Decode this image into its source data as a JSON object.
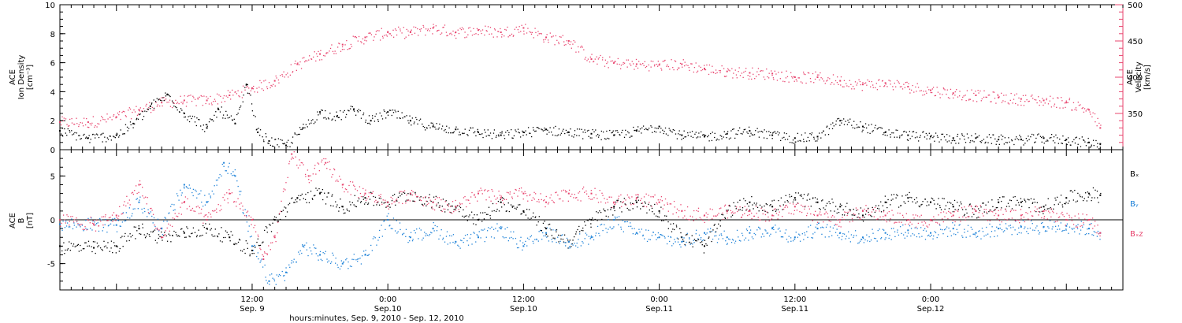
{
  "colors": {
    "axis": "#000000",
    "density": "#000000",
    "velocity": "#e8446e",
    "bx": "#000000",
    "by": "#1e82d8",
    "bz": "#e8446e"
  },
  "chart_data": [
    {
      "type": "scatter",
      "panel": "top",
      "left_axis": {
        "label_lines": [
          "ACE",
          "Ion Density",
          "[cm⁻³]"
        ],
        "ylim": [
          0,
          10
        ],
        "ticks": [
          "0",
          "2",
          "4",
          "6",
          "8",
          "10"
        ]
      },
      "right_axis": {
        "label_lines": [
          "ACE",
          "Velocity",
          "[km/s]"
        ],
        "ylim": [
          300,
          500
        ],
        "ticks": [
          "350",
          "400",
          "450",
          "500"
        ]
      },
      "series": [
        {
          "key": "density",
          "axis": "left",
          "x": [
            -5.0,
            -2.5,
            0.0,
            1.5,
            3.0,
            4.5,
            6.0,
            8.0,
            9.0,
            10.5,
            11.5,
            12.5,
            13.5,
            15.0,
            16.5,
            18.0,
            19.5,
            21.0,
            22.5,
            24.0,
            26.0,
            28.0,
            30.0,
            32.0,
            34.0,
            36.0,
            38.0,
            40.0,
            42.0,
            44.0,
            46.0,
            48.0,
            50.0,
            52.0,
            54.0,
            56.0,
            58.0,
            60.0,
            62.0,
            64.0,
            66.0,
            68.0,
            70.0,
            72.0,
            74.0,
            76.0,
            78.0,
            80.0,
            82.0,
            84.0,
            86.0,
            87.0
          ],
          "y": [
            1.3,
            0.8,
            1.0,
            1.8,
            3.0,
            3.8,
            2.5,
            1.5,
            2.8,
            1.8,
            4.5,
            1.2,
            0.6,
            0.3,
            1.5,
            2.6,
            2.3,
            2.8,
            2.0,
            2.6,
            2.0,
            1.6,
            1.4,
            1.2,
            1.0,
            1.2,
            1.4,
            1.2,
            1.1,
            1.0,
            1.3,
            1.6,
            1.0,
            0.9,
            1.1,
            1.3,
            1.0,
            0.8,
            0.9,
            2.0,
            1.6,
            1.2,
            1.0,
            0.9,
            0.8,
            0.8,
            0.7,
            0.7,
            0.8,
            0.7,
            0.5,
            0.4
          ]
        },
        {
          "key": "velocity",
          "axis": "right",
          "x": [
            -5.0,
            -2.5,
            0.0,
            2.0,
            4.0,
            6.0,
            8.0,
            10.0,
            12.0,
            14.0,
            16.0,
            18.0,
            20.0,
            22.0,
            24.0,
            26.0,
            28.0,
            30.0,
            32.0,
            34.0,
            36.0,
            38.0,
            40.0,
            42.0,
            44.0,
            46.0,
            48.0,
            50.0,
            52.0,
            54.0,
            56.0,
            58.0,
            60.0,
            62.0,
            64.0,
            66.0,
            68.0,
            70.0,
            72.0,
            74.0,
            76.0,
            78.0,
            80.0,
            82.0,
            84.0,
            86.0,
            87.0
          ],
          "y": [
            338,
            338,
            345,
            355,
            365,
            368,
            368,
            375,
            385,
            395,
            418,
            432,
            445,
            455,
            462,
            462,
            468,
            462,
            465,
            462,
            468,
            455,
            450,
            425,
            420,
            418,
            417,
            418,
            412,
            408,
            406,
            405,
            400,
            400,
            395,
            390,
            392,
            387,
            382,
            378,
            375,
            372,
            370,
            368,
            365,
            355,
            330
          ]
        }
      ]
    },
    {
      "type": "scatter",
      "panel": "bottom",
      "left_axis": {
        "label_lines": [
          "ACE",
          "B",
          "[nT]"
        ],
        "ylim": [
          -8,
          8
        ],
        "ticks": [
          "-5",
          "0",
          "5"
        ]
      },
      "zero_line": true,
      "legend": [
        "Bₓ",
        "Bᵧ",
        "Bₓz"
      ],
      "series": [
        {
          "key": "bx",
          "name": "Bx",
          "x": [
            -5.0,
            -2.0,
            0.0,
            2.0,
            4.0,
            6.0,
            8.0,
            10.0,
            12.0,
            14.0,
            16.0,
            18.0,
            20.0,
            22.0,
            24.0,
            26.0,
            28.0,
            30.0,
            32.0,
            34.0,
            36.0,
            38.0,
            40.0,
            42.0,
            44.0,
            46.0,
            48.0,
            50.0,
            52.0,
            54.0,
            56.0,
            58.0,
            60.0,
            62.0,
            64.0,
            66.0,
            68.0,
            70.0,
            72.0,
            74.0,
            76.0,
            78.0,
            80.0,
            82.0,
            84.0,
            86.0,
            87.0
          ],
          "y": [
            -3.0,
            -3.2,
            -3.0,
            -1.0,
            -2.0,
            -1.5,
            -1.0,
            -2.0,
            -3.5,
            0.0,
            2.5,
            3.0,
            1.5,
            2.5,
            2.0,
            3.0,
            2.0,
            1.5,
            0.0,
            2.0,
            1.0,
            -1.0,
            -2.5,
            0.0,
            1.5,
            2.0,
            1.0,
            -2.0,
            -3.0,
            1.0,
            2.0,
            1.5,
            2.5,
            2.0,
            1.5,
            0.5,
            2.0,
            2.5,
            2.0,
            1.5,
            1.0,
            2.0,
            2.0,
            1.5,
            2.5,
            3.0,
            2.8
          ]
        },
        {
          "key": "by",
          "name": "By",
          "x": [
            -5.0,
            -2.0,
            0.0,
            2.0,
            4.0,
            6.0,
            8.0,
            9.5,
            10.5,
            12.0,
            13.5,
            15.0,
            16.5,
            18.0,
            20.0,
            22.0,
            24.0,
            26.0,
            28.0,
            30.0,
            32.0,
            34.0,
            36.0,
            38.0,
            40.0,
            42.0,
            44.0,
            46.0,
            48.0,
            50.0,
            52.0,
            54.0,
            56.0,
            58.0,
            60.0,
            62.0,
            64.0,
            66.0,
            68.0,
            70.0,
            72.0,
            74.0,
            76.0,
            78.0,
            80.0,
            82.0,
            84.0,
            86.0,
            87.0
          ],
          "y": [
            -0.5,
            -0.5,
            -0.6,
            2.0,
            -1.0,
            4.0,
            2.0,
            6.5,
            5.0,
            -3.0,
            -7.0,
            -6.0,
            -3.0,
            -4.0,
            -5.0,
            -4.0,
            0.0,
            -2.0,
            -1.0,
            -2.5,
            -2.0,
            -1.0,
            -3.0,
            -1.5,
            -2.5,
            -2.0,
            0.0,
            -1.5,
            -2.0,
            -2.5,
            -1.5,
            -2.0,
            -1.5,
            -1.0,
            -2.0,
            -1.0,
            -1.5,
            -2.0,
            -1.5,
            -1.2,
            -1.5,
            -1.0,
            -1.5,
            -1.0,
            -0.8,
            -0.8,
            -0.7,
            -1.0,
            -1.5
          ]
        },
        {
          "key": "bz",
          "name": "Bz",
          "x": [
            -5.0,
            -2.0,
            0.0,
            2.0,
            4.0,
            6.0,
            8.0,
            10.0,
            12.0,
            13.0,
            14.0,
            15.5,
            17.0,
            18.5,
            20.0,
            22.0,
            24.0,
            26.0,
            28.0,
            30.0,
            32.0,
            34.0,
            36.0,
            38.0,
            40.0,
            42.0,
            44.0,
            46.0,
            48.0,
            50.0,
            52.0,
            54.0,
            56.0,
            58.0,
            60.0,
            62.0,
            64.0,
            66.0,
            68.0,
            70.0,
            72.0,
            74.0,
            76.0,
            78.0,
            80.0,
            82.0,
            84.0,
            86.0,
            87.0
          ],
          "y": [
            0.0,
            -0.5,
            0.5,
            4.0,
            -2.0,
            2.0,
            0.0,
            3.0,
            0.0,
            -4.5,
            -2.0,
            7.5,
            5.0,
            6.5,
            4.0,
            3.0,
            2.0,
            3.0,
            2.0,
            1.5,
            3.0,
            2.5,
            3.0,
            2.0,
            3.0,
            3.0,
            2.0,
            2.5,
            2.0,
            1.0,
            0.5,
            1.0,
            1.0,
            0.5,
            1.5,
            0.5,
            0.0,
            1.0,
            0.5,
            0.0,
            0.0,
            0.5,
            1.0,
            0.5,
            0.5,
            1.0,
            0.0,
            0.0,
            -1.5
          ]
        }
      ]
    }
  ],
  "x_axis": {
    "xlim": [
      -5.0,
      89.0
    ],
    "ticks": [
      {
        "x": 12,
        "time": "12:00",
        "date": "Sep. 9"
      },
      {
        "x": 24,
        "time": "0:00",
        "date": "Sep.10"
      },
      {
        "x": 36,
        "time": "12:00",
        "date": "Sep.10"
      },
      {
        "x": 48,
        "time": "0:00",
        "date": "Sep.11"
      },
      {
        "x": 60,
        "time": "12:00",
        "date": "Sep.11"
      },
      {
        "x": 72,
        "time": "0:00",
        "date": "Sep.12"
      }
    ],
    "title": "hours:minutes, Sep.  9, 2010 - Sep. 12, 2010"
  }
}
